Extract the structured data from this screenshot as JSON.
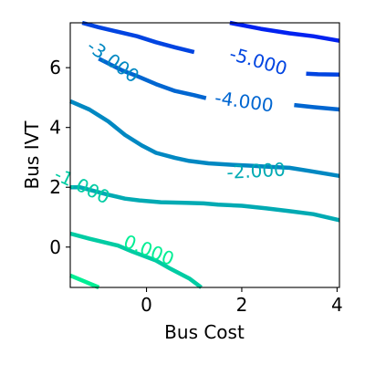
{
  "chart_data": {
    "type": "contour",
    "xlabel": "Bus Cost",
    "ylabel": "Bus IVT",
    "xlim": [
      -1.6,
      4.05
    ],
    "ylim": [
      -1.35,
      7.5
    ],
    "xticks": [
      {
        "value": 0,
        "label": "0"
      },
      {
        "value": 2,
        "label": "2"
      },
      {
        "value": 4,
        "label": "4"
      }
    ],
    "yticks": [
      {
        "value": 0,
        "label": "0"
      },
      {
        "value": 2,
        "label": "2"
      },
      {
        "value": 4,
        "label": "4"
      },
      {
        "value": 6,
        "label": "6"
      }
    ],
    "grid": false,
    "colormap": "winter",
    "contours": [
      {
        "level": -6,
        "label": "",
        "color": "#0022f0",
        "points": [
          [
            1.75,
            7.5
          ],
          [
            2.4,
            7.3
          ],
          [
            3.0,
            7.15
          ],
          [
            3.5,
            7.05
          ],
          [
            4.05,
            6.9
          ]
        ]
      },
      {
        "level": -5,
        "label": "-5.000",
        "color": "#0044e1",
        "points": [
          [
            -1.35,
            7.5
          ],
          [
            -1.0,
            7.35
          ],
          [
            -0.6,
            7.2
          ],
          [
            -0.2,
            7.05
          ],
          [
            0.2,
            6.85
          ],
          [
            0.6,
            6.68
          ],
          [
            1.0,
            6.52
          ]
        ],
        "points2": [
          [
            3.35,
            5.8
          ],
          [
            3.6,
            5.78
          ],
          [
            4.05,
            5.77
          ]
        ],
        "label_at": [
          2.35,
          6.22
        ],
        "label_angle": 16
      },
      {
        "level": -4,
        "label": "-4.000",
        "color": "#0066d1",
        "points": [
          [
            -1.0,
            6.3
          ],
          [
            -0.75,
            6.1
          ],
          [
            -0.5,
            5.9
          ],
          [
            -0.2,
            5.72
          ],
          [
            0.2,
            5.45
          ],
          [
            0.6,
            5.22
          ],
          [
            1.0,
            5.08
          ],
          [
            1.25,
            4.98
          ]
        ],
        "points2": [
          [
            3.1,
            4.75
          ],
          [
            3.5,
            4.68
          ],
          [
            4.05,
            4.6
          ]
        ],
        "label_at": [
          2.05,
          4.87
        ],
        "label_angle": 8
      },
      {
        "level": -3,
        "label": "-3.000",
        "color": "#0088c2",
        "points": [
          [
            -1.6,
            4.88
          ],
          [
            -1.2,
            4.6
          ],
          [
            -0.8,
            4.2
          ],
          [
            -0.45,
            3.75
          ],
          [
            -0.1,
            3.4
          ],
          [
            0.2,
            3.15
          ],
          [
            0.6,
            2.98
          ],
          [
            0.9,
            2.88
          ],
          [
            1.3,
            2.8
          ],
          [
            1.8,
            2.75
          ],
          [
            2.2,
            2.72
          ],
          [
            2.6,
            2.68
          ],
          [
            3.0,
            2.65
          ],
          [
            3.4,
            2.55
          ],
          [
            4.05,
            2.38
          ]
        ],
        "label_at": [
          -0.7,
          6.22
        ],
        "label_angle": 36
      },
      {
        "level": -2,
        "label": "-2.000",
        "color": "#00aab3",
        "points": [
          [
            -1.6,
            2.0
          ],
          [
            -1.4,
            2.0
          ],
          [
            -0.8,
            1.75
          ],
          [
            -0.45,
            1.62
          ],
          [
            -0.15,
            1.56
          ],
          [
            0.3,
            1.5
          ],
          [
            0.8,
            1.48
          ],
          [
            1.2,
            1.46
          ],
          [
            1.5,
            1.42
          ],
          [
            2.0,
            1.38
          ],
          [
            2.5,
            1.3
          ],
          [
            3.0,
            1.2
          ],
          [
            3.5,
            1.1
          ],
          [
            4.05,
            0.9
          ]
        ],
        "label_at": [
          2.3,
          2.55
        ],
        "label_angle": -3
      },
      {
        "level": -1,
        "label": "-1.000",
        "color": "#00cca3",
        "points": [
          [
            -1.6,
            0.45
          ],
          [
            -1.2,
            0.28
          ],
          [
            -0.6,
            0.05
          ],
          [
            -0.3,
            -0.15
          ],
          [
            0.2,
            -0.45
          ],
          [
            0.5,
            -0.72
          ],
          [
            0.9,
            -1.05
          ],
          [
            1.15,
            -1.35
          ]
        ],
        "label_at": [
          -1.35,
          2.05
        ],
        "label_angle": 26
      },
      {
        "level": 0,
        "label": "0.000",
        "color": "#00ee94",
        "points": [
          [
            -1.6,
            -0.95
          ],
          [
            -1.3,
            -1.15
          ],
          [
            -1.0,
            -1.35
          ]
        ],
        "label_at": [
          0.05,
          -0.1
        ],
        "label_angle": 22
      }
    ]
  }
}
